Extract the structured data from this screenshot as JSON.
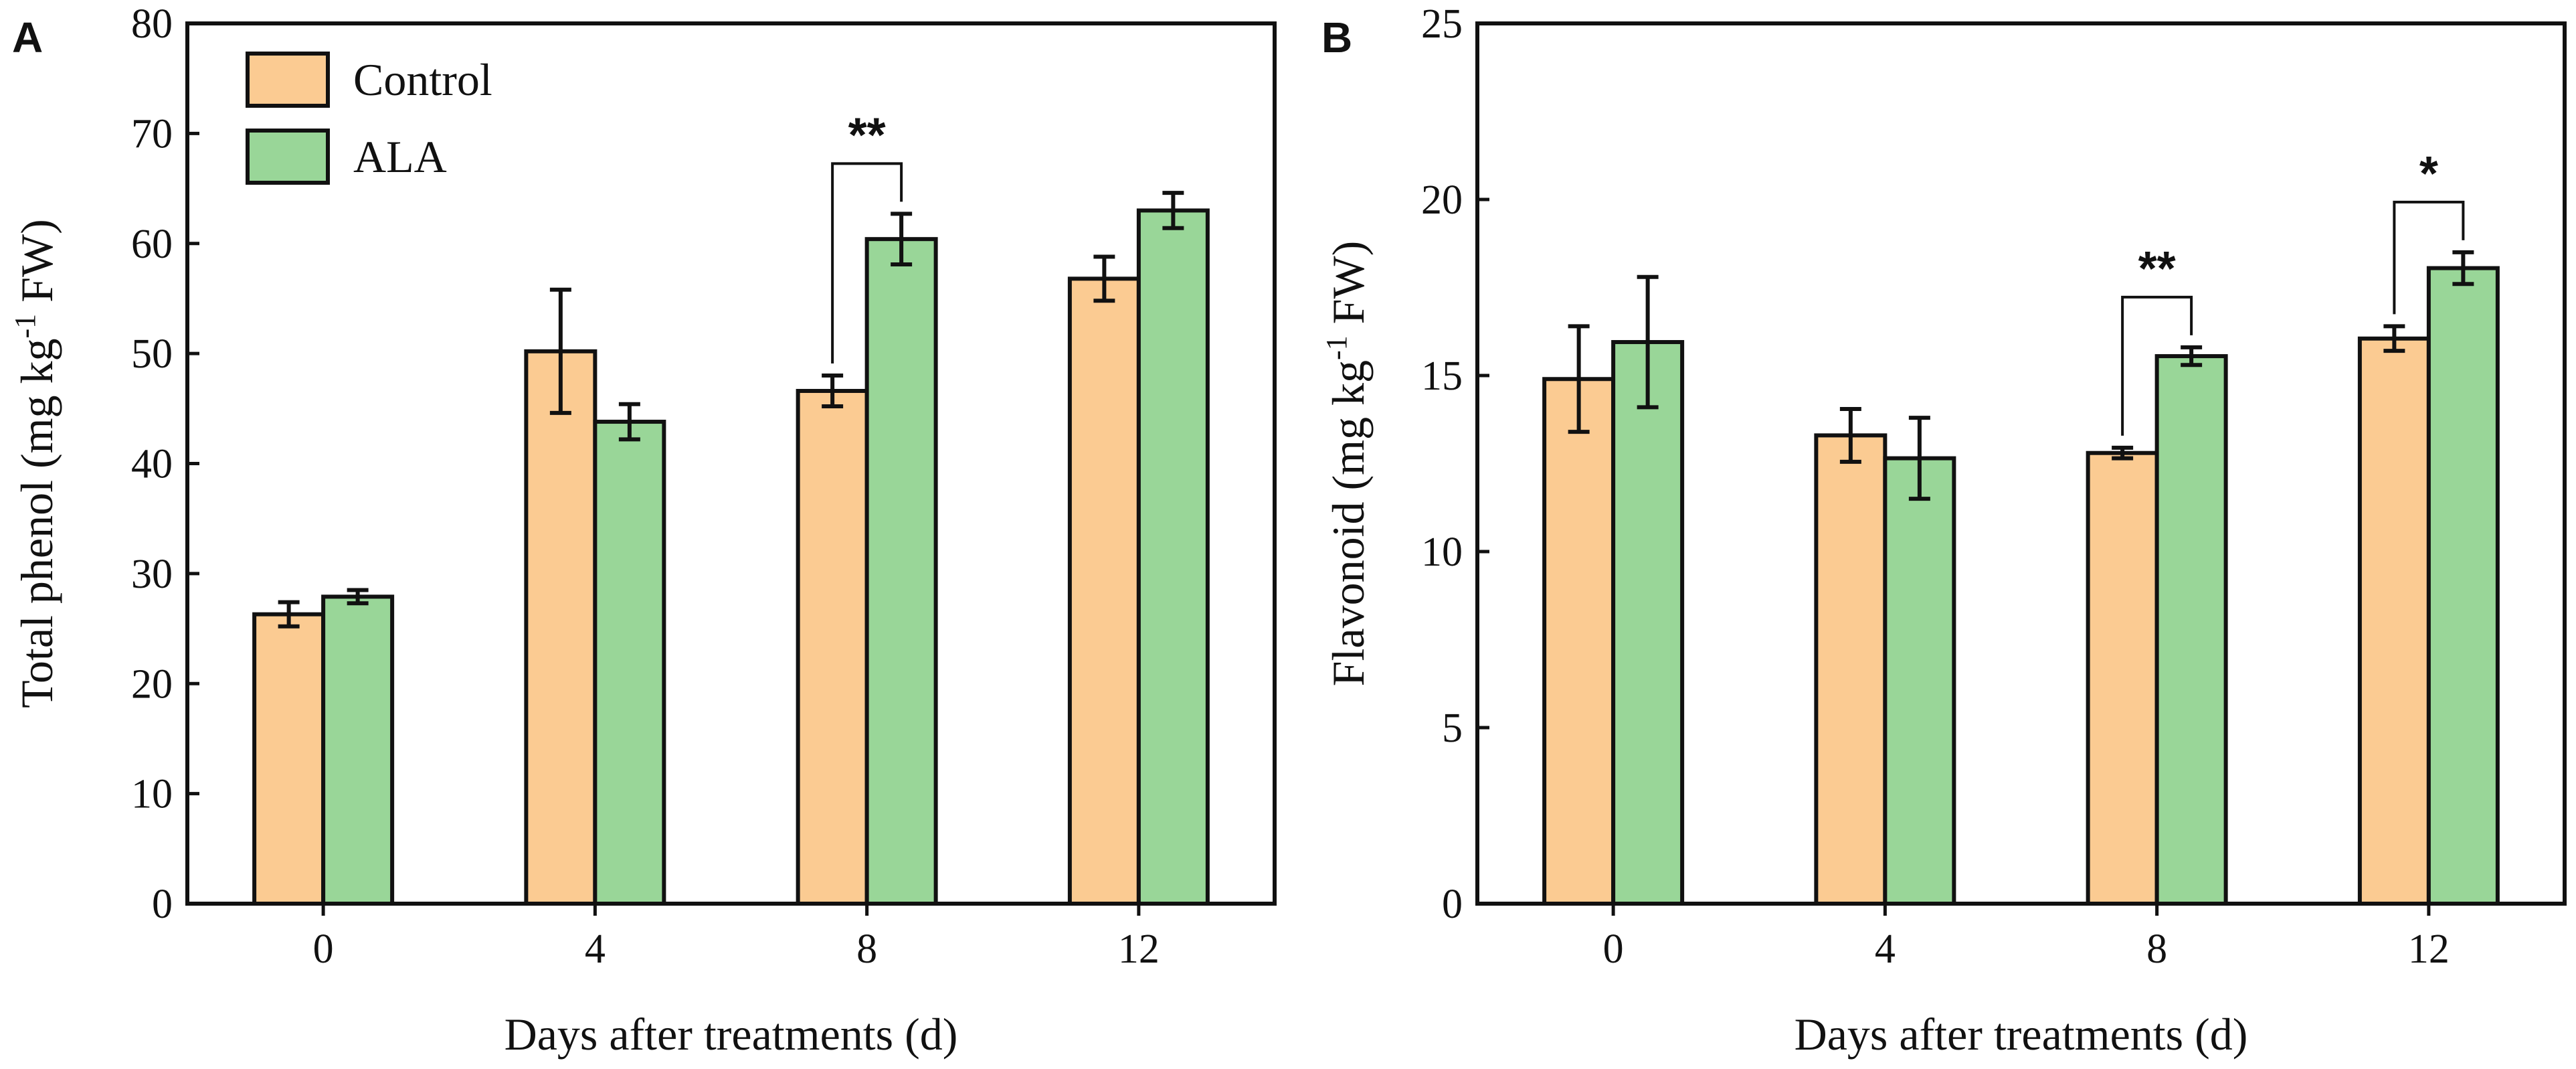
{
  "chart_data": [
    {
      "type": "bar",
      "panel": "A",
      "categories": [
        "0",
        "4",
        "8",
        "12"
      ],
      "series": [
        {
          "name": "Control",
          "color": "#FBCB92",
          "values": [
            26.3,
            50.2,
            46.6,
            56.8
          ],
          "errors": [
            1.1,
            5.6,
            1.4,
            2.0
          ]
        },
        {
          "name": "ALA",
          "color": "#99D698",
          "values": [
            27.9,
            43.8,
            60.4,
            63.0
          ],
          "errors": [
            0.6,
            1.6,
            2.3,
            1.6
          ]
        }
      ],
      "significance": [
        {
          "category": "8",
          "label": "**"
        }
      ],
      "xlabel": "Days after treatments (d)",
      "ylabel_main": "Total phenol (mg kg",
      "ylabel_sup": "-1",
      "ylabel_tail": " FW)",
      "ylim": [
        0,
        80
      ],
      "yticks": [
        0,
        10,
        20,
        30,
        40,
        50,
        60,
        70,
        80
      ],
      "legend": "top-left"
    },
    {
      "type": "bar",
      "panel": "B",
      "categories": [
        "0",
        "4",
        "8",
        "12"
      ],
      "series": [
        {
          "name": "Control",
          "color": "#FBCB92",
          "values": [
            14.9,
            13.3,
            12.8,
            16.05
          ],
          "errors": [
            1.5,
            0.75,
            0.15,
            0.35
          ]
        },
        {
          "name": "ALA",
          "color": "#99D698",
          "values": [
            15.95,
            12.65,
            15.55,
            18.05
          ],
          "errors": [
            1.85,
            1.15,
            0.25,
            0.45
          ]
        }
      ],
      "significance": [
        {
          "category": "8",
          "label": "**"
        },
        {
          "category": "12",
          "label": "*"
        }
      ],
      "xlabel": "Days after treatments (d)",
      "ylabel_main": "Flavonoid (mg kg",
      "ylabel_sup": "-1",
      "ylabel_tail": " FW)",
      "ylim": [
        0,
        25
      ],
      "yticks": [
        0,
        5,
        10,
        15,
        20,
        25
      ],
      "legend": "none"
    }
  ]
}
